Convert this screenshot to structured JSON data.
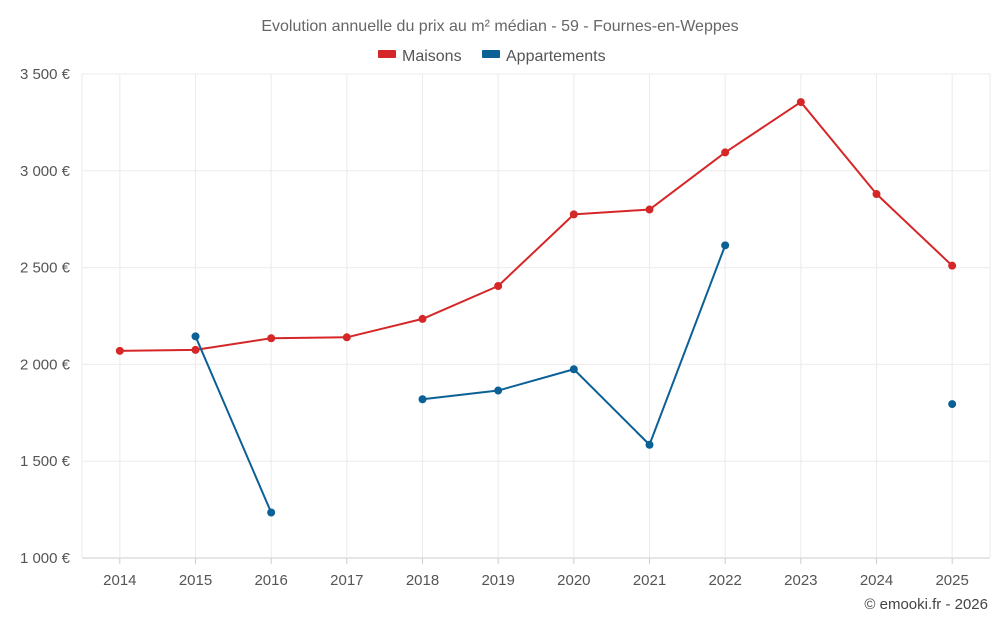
{
  "chart_data": {
    "type": "line",
    "title": "Evolution annuelle du prix au m² médian - 59 - Fournes-en-Weppes",
    "categories": [
      "2014",
      "2015",
      "2016",
      "2017",
      "2018",
      "2019",
      "2020",
      "2021",
      "2022",
      "2023",
      "2024",
      "2025"
    ],
    "series": [
      {
        "name": "Maisons",
        "color": "#d62728",
        "values": [
          2070,
          2075,
          2135,
          2140,
          2235,
          2405,
          2775,
          2800,
          3095,
          3355,
          2880,
          2510
        ]
      },
      {
        "name": "Appartements",
        "color": "#0b6196",
        "values": [
          null,
          2145,
          1235,
          null,
          1820,
          1865,
          1975,
          1585,
          2615,
          null,
          null,
          1795
        ]
      }
    ],
    "ylim": [
      1000,
      3500
    ],
    "yticks": [
      1000,
      1500,
      2000,
      2500,
      3000,
      3500
    ],
    "ytick_labels": [
      "1 000 €",
      "1 500 €",
      "2 000 €",
      "2 500 €",
      "3 000 €",
      "3 500 €"
    ],
    "xlabel": "",
    "ylabel": "",
    "grid": true,
    "legend_position": "top-center"
  },
  "credit": "© emooki.fr - 2026"
}
